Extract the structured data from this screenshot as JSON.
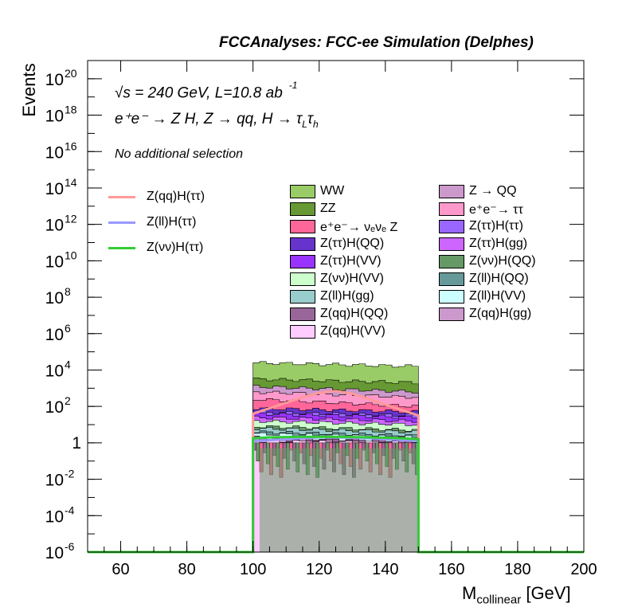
{
  "title": "FCCAnalyses: FCC-ee Simulation (Delphes)",
  "annotations": {
    "energy_lumi": "√s = 240 GeV, L=10.8 ab",
    "energy_lumi_exp": "-1",
    "process": "e⁺e⁻ → Z H, Z → qq, H → τ",
    "process_sub1": "L",
    "process_tau2": "τ",
    "process_sub2": "h",
    "selection": "No additional selection"
  },
  "chart_data": {
    "type": "bar",
    "title": "FCCAnalyses: FCC-ee Simulation (Delphes)",
    "xlabel": "M",
    "xlabel_sub": "collinear",
    "xlabel_unit": "[GeV]",
    "ylabel": "Events",
    "xlim": [
      50,
      200
    ],
    "ylim_log10": [
      -6,
      21
    ],
    "log_y": true,
    "grid": false,
    "legend_placement": "top-center",
    "x_ticks": [
      "60",
      "80",
      "100",
      "120",
      "140",
      "160",
      "180",
      "200"
    ],
    "x_tick_values": [
      60,
      80,
      100,
      120,
      140,
      160,
      180,
      200
    ],
    "y_ticks": [
      {
        "exp": -6,
        "base": "10",
        "sup": "-6"
      },
      {
        "exp": -4,
        "base": "10",
        "sup": "-4"
      },
      {
        "exp": -2,
        "base": "10",
        "sup": "-2"
      },
      {
        "exp": 0,
        "base": "1",
        "sup": ""
      },
      {
        "exp": 2,
        "base": "10",
        "sup": "2"
      },
      {
        "exp": 4,
        "base": "10",
        "sup": "4"
      },
      {
        "exp": 6,
        "base": "10",
        "sup": "6"
      },
      {
        "exp": 8,
        "base": "10",
        "sup": "8"
      },
      {
        "exp": 10,
        "base": "10",
        "sup": "10"
      },
      {
        "exp": 12,
        "base": "10",
        "sup": "12"
      },
      {
        "exp": 14,
        "base": "10",
        "sup": "14"
      },
      {
        "exp": 16,
        "base": "10",
        "sup": "16"
      },
      {
        "exp": 18,
        "base": "10",
        "sup": "18"
      },
      {
        "exp": 20,
        "base": "10",
        "sup": "20"
      }
    ],
    "x_range_filled": [
      100,
      150
    ],
    "backgrounds": [
      {
        "name": "WW",
        "color": "#99cc66",
        "log10_start": 4.4,
        "log10_end": 4.2
      },
      {
        "name": "ZZ",
        "color": "#669933",
        "log10_start": 3.5,
        "log10_end": 3.3
      },
      {
        "name": "Z → QQ",
        "color": "#cc99cc",
        "log10_start": 3.1,
        "log10_end": 2.8
      },
      {
        "name": "e⁺e⁻→ ττ",
        "color": "#ff99cc",
        "log10_start": 2.8,
        "log10_end": 2.5
      },
      {
        "name": "e⁺e⁻→ νₑνₑ Z",
        "color": "#ff6699",
        "log10_start": 2.4,
        "log10_end": 2.0
      },
      {
        "name": "Z(ττ)H(QQ)",
        "color": "#6633cc",
        "log10_start": 1.9,
        "log10_end": 1.7
      },
      {
        "name": "Z(ττ)H(ττ)",
        "color": "#9966ff",
        "log10_start": 1.7,
        "log10_end": 1.5
      },
      {
        "name": "Z(ττ)H(VV)",
        "color": "#9933ff",
        "log10_start": 1.6,
        "log10_end": 1.4
      },
      {
        "name": "Z(ττ)H(gg)",
        "color": "#cc66ff",
        "log10_start": 1.4,
        "log10_end": 1.2
      },
      {
        "name": "Z(νν)H(VV)",
        "color": "#ccffcc",
        "log10_start": 1.2,
        "log10_end": 1.0
      },
      {
        "name": "Z(νν)H(QQ)",
        "color": "#669966",
        "log10_start": 0.9,
        "log10_end": 0.7
      },
      {
        "name": "Z(ll)H(gg)",
        "color": "#99cccc",
        "log10_start": 0.8,
        "log10_end": 0.6
      },
      {
        "name": "Z(ll)H(QQ)",
        "color": "#669999",
        "log10_start": 0.6,
        "log10_end": 0.4
      },
      {
        "name": "Z(ll)H(VV)",
        "color": "#ccffff",
        "log10_start": 0.5,
        "log10_end": 0.3
      },
      {
        "name": "Z(qq)H(QQ)",
        "color": "#996699",
        "log10_start": 0.3,
        "log10_end": 0.1
      },
      {
        "name": "Z(qq)H(gg)",
        "color": "#cc99cc",
        "log10_start": 0.2,
        "log10_end": 0.0
      },
      {
        "name": "Z(qq)H(VV)",
        "color": "#ffccff",
        "log10_start": 0.1,
        "log10_end": 0.0
      }
    ],
    "legend_columns": [
      [
        "WW",
        "ZZ",
        "e⁺e⁻→ νₑνₑ Z",
        "Z(ττ)H(QQ)",
        "Z(ττ)H(VV)",
        "Z(νν)H(VV)",
        "Z(ll)H(gg)",
        "Z(qq)H(QQ)",
        "Z(qq)H(VV)"
      ],
      [
        "Z → QQ",
        "e⁺e⁻→ ττ",
        "Z(ττ)H(ττ)",
        "Z(ττ)H(gg)",
        "Z(νν)H(QQ)",
        "Z(ll)H(QQ)",
        "Z(ll)H(VV)",
        "Z(qq)H(gg)"
      ]
    ],
    "signals": [
      {
        "name": "Z(qq)H(ττ)",
        "color": "#ff9999",
        "x": [
          100,
          105,
          110,
          115,
          120,
          125,
          130,
          135,
          140,
          145,
          150
        ],
        "log10_values": [
          1.6,
          1.9,
          2.2,
          2.5,
          2.75,
          2.85,
          2.7,
          2.4,
          2.1,
          1.8,
          1.5
        ]
      },
      {
        "name": "Z(ll)H(ττ)",
        "color": "#9999ff",
        "x": [
          100,
          105,
          110,
          115,
          120,
          125,
          130,
          135,
          140,
          145,
          150
        ],
        "log10_values": [
          0.1,
          0.15,
          0.2,
          0.25,
          0.3,
          0.3,
          0.28,
          0.25,
          0.2,
          0.15,
          0.1
        ]
      },
      {
        "name": "Z(νν)H(ττ)",
        "color": "#33cc33",
        "x": [
          100,
          105,
          110,
          115,
          120,
          125,
          130,
          135,
          140,
          145,
          150
        ],
        "log10_values": [
          0.25,
          0.3,
          0.32,
          0.33,
          0.33,
          0.33,
          0.32,
          0.3,
          0.28,
          0.25,
          0.2
        ]
      }
    ],
    "baseline_log10": -6
  }
}
